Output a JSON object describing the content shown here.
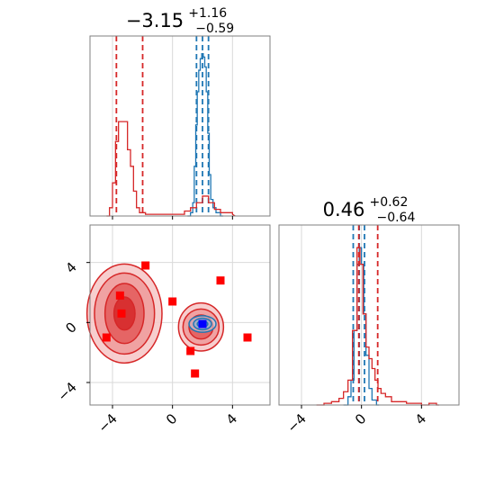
{
  "chart_data": [
    {
      "panel": "x-marginal",
      "type": "histogram",
      "title": {
        "main": "−3.15",
        "sup": "+1.16",
        "sub": "−0.59"
      },
      "xlim": [
        -5.5,
        6.5
      ],
      "series": [
        {
          "color": "#1f77b4",
          "bins": [
            [
              1.0,
              0.0
            ],
            [
              1.2,
              0.02
            ],
            [
              1.35,
              0.08
            ],
            [
              1.45,
              0.3
            ],
            [
              1.55,
              0.55
            ],
            [
              1.65,
              0.75
            ],
            [
              1.75,
              0.88
            ],
            [
              1.85,
              0.95
            ],
            [
              1.95,
              0.98
            ],
            [
              2.05,
              0.96
            ],
            [
              2.15,
              0.9
            ],
            [
              2.25,
              0.75
            ],
            [
              2.35,
              0.5
            ],
            [
              2.45,
              0.25
            ],
            [
              2.55,
              0.1
            ],
            [
              2.7,
              0.05
            ],
            [
              2.9,
              0.02
            ],
            [
              3.2,
              0.0
            ]
          ],
          "quantile_lines": [
            1.6,
            2.0,
            2.4
          ]
        },
        {
          "color": "#d62728",
          "bins": [
            [
              -4.4,
              0.0
            ],
            [
              -4.2,
              0.05
            ],
            [
              -4.0,
              0.2
            ],
            [
              -3.8,
              0.45
            ],
            [
              -3.6,
              0.57
            ],
            [
              -3.4,
              0.57
            ],
            [
              -3.2,
              0.57
            ],
            [
              -3.0,
              0.4
            ],
            [
              -2.8,
              0.3
            ],
            [
              -2.6,
              0.15
            ],
            [
              -2.4,
              0.05
            ],
            [
              -2.2,
              0.02
            ],
            [
              -1.8,
              0.01
            ],
            [
              0.2,
              0.01
            ],
            [
              0.8,
              0.03
            ],
            [
              1.2,
              0.05
            ],
            [
              1.6,
              0.08
            ],
            [
              2.0,
              0.12
            ],
            [
              2.4,
              0.08
            ],
            [
              2.8,
              0.04
            ],
            [
              3.2,
              0.02
            ],
            [
              4.0,
              0.01
            ]
          ],
          "quantile_lines": [
            -3.74,
            -1.99
          ]
        }
      ]
    },
    {
      "panel": "joint",
      "type": "scatter",
      "xlim": [
        -5.5,
        6.5
      ],
      "ylim": [
        -5.5,
        6.5
      ],
      "xticks": [
        -4,
        0,
        4
      ],
      "yticks": [
        -4,
        0,
        4
      ],
      "series": [
        {
          "color": "#ff0000",
          "marker": "square",
          "points": [
            [
              -3.5,
              1.8
            ],
            [
              -1.8,
              3.8
            ],
            [
              0.0,
              1.4
            ],
            [
              3.2,
              2.8
            ],
            [
              -3.4,
              0.6
            ],
            [
              -4.4,
              -1.0
            ],
            [
              1.2,
              -1.9
            ],
            [
              1.5,
              -3.4
            ],
            [
              5.0,
              -1.0
            ]
          ]
        },
        {
          "color": "#0000ff",
          "marker": "square",
          "points": [
            [
              2.0,
              -0.1
            ]
          ]
        }
      ],
      "contours": [
        {
          "color": "#d62728",
          "center": [
            -3.2,
            0.6
          ],
          "rx": [
            2.5,
            2.0,
            1.3,
            0.7
          ],
          "ry": [
            3.3,
            2.7,
            2.0,
            1.1
          ]
        },
        {
          "color": "#d62728",
          "center": [
            1.9,
            -0.3
          ],
          "rx": [
            1.5,
            1.2,
            0.8
          ],
          "ry": [
            1.6,
            1.2,
            0.8
          ]
        },
        {
          "color": "#1f77b4",
          "center": [
            2.0,
            -0.1
          ],
          "rx": [
            0.9,
            0.6,
            0.35
          ],
          "ry": [
            0.55,
            0.38,
            0.2
          ]
        }
      ]
    },
    {
      "panel": "y-marginal",
      "type": "histogram",
      "title": {
        "main": "0.46",
        "sup": "+0.62",
        "sub": "−0.64"
      },
      "xlim": [
        -5.5,
        6.5
      ],
      "xticks": [
        -4,
        0,
        4
      ],
      "series": [
        {
          "color": "#1f77b4",
          "bins": [
            [
              -1.2,
              0.0
            ],
            [
              -0.9,
              0.05
            ],
            [
              -0.7,
              0.15
            ],
            [
              -0.5,
              0.45
            ],
            [
              -0.3,
              0.85
            ],
            [
              -0.15,
              0.95
            ],
            [
              0.0,
              0.85
            ],
            [
              0.15,
              0.55
            ],
            [
              0.3,
              0.3
            ],
            [
              0.5,
              0.1
            ],
            [
              0.7,
              0.03
            ],
            [
              1.0,
              0.0
            ]
          ],
          "quantile_lines": [
            -0.55,
            -0.15,
            0.2
          ]
        },
        {
          "color": "#d62728",
          "bins": [
            [
              -3.0,
              0.0
            ],
            [
              -2.5,
              0.01
            ],
            [
              -2.0,
              0.02
            ],
            [
              -1.5,
              0.04
            ],
            [
              -1.2,
              0.08
            ],
            [
              -0.9,
              0.15
            ],
            [
              -0.6,
              0.45
            ],
            [
              -0.3,
              0.95
            ],
            [
              -0.1,
              0.85
            ],
            [
              0.1,
              0.55
            ],
            [
              0.3,
              0.35
            ],
            [
              0.5,
              0.28
            ],
            [
              0.7,
              0.22
            ],
            [
              0.9,
              0.15
            ],
            [
              1.1,
              0.1
            ],
            [
              1.3,
              0.07
            ],
            [
              1.6,
              0.05
            ],
            [
              2.0,
              0.02
            ],
            [
              3.0,
              0.01
            ],
            [
              4.0,
              0.0
            ],
            [
              4.5,
              0.01
            ],
            [
              5.0,
              0.0
            ]
          ],
          "quantile_lines": [
            -0.18,
            1.08
          ]
        }
      ]
    }
  ]
}
